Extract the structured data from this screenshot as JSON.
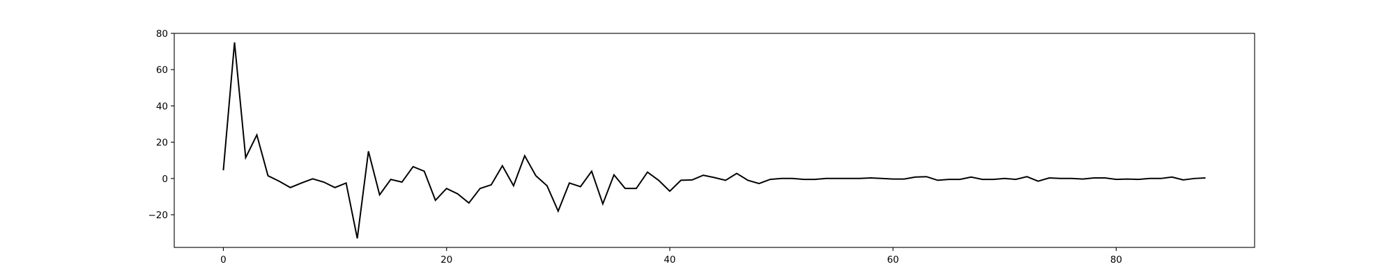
{
  "chart_data": {
    "type": "line",
    "title": "",
    "xlabel": "",
    "ylabel": "",
    "xlim": [
      -4.4,
      92.4
    ],
    "ylim": [
      -38,
      80
    ],
    "xticks": [
      0,
      20,
      40,
      60,
      80
    ],
    "yticks": [
      -20,
      0,
      20,
      40,
      60,
      80
    ],
    "grid": false,
    "legend": "none",
    "series": [
      {
        "color": "#000000",
        "x": [
          0,
          1,
          2,
          3,
          4,
          5,
          6,
          7,
          8,
          9,
          10,
          11,
          12,
          13,
          14,
          15,
          16,
          17,
          18,
          19,
          20,
          21,
          22,
          23,
          24,
          25,
          26,
          27,
          28,
          29,
          30,
          31,
          32,
          33,
          34,
          35,
          36,
          37,
          38,
          39,
          40,
          41,
          42,
          43,
          44,
          45,
          46,
          47,
          48,
          49,
          50,
          51,
          52,
          53,
          54,
          55,
          56,
          57,
          58,
          59,
          60,
          61,
          62,
          63,
          64,
          65,
          66,
          67,
          68,
          69,
          70,
          71,
          72,
          73,
          74,
          75,
          76,
          77,
          78,
          79,
          80,
          81,
          82,
          83,
          84,
          85,
          86,
          87,
          88
        ],
        "y": [
          4.5,
          75,
          11.5,
          24,
          1.5,
          -1.5,
          -5,
          -2.5,
          -0.2,
          -2,
          -5,
          -2.5,
          -33,
          15,
          -9,
          -0.5,
          -2,
          6.5,
          4,
          -12,
          -5.5,
          -8.5,
          -13.5,
          -5.5,
          -3.5,
          7,
          -4,
          12.5,
          1.5,
          -4,
          -18,
          -2.5,
          -4.5,
          4,
          -14,
          2,
          -5.5,
          -5.5,
          3.5,
          -1,
          -7,
          -1,
          -0.8,
          1.8,
          0.5,
          -1,
          2.8,
          -1,
          -2.8,
          -0.5,
          0,
          0,
          -0.5,
          -0.5,
          0,
          0,
          0,
          0,
          0.3,
          0,
          -0.3,
          -0.3,
          0.8,
          1,
          -1,
          -0.5,
          -0.5,
          0.8,
          -0.5,
          -0.5,
          0,
          -0.5,
          1,
          -1.5,
          0.3,
          0,
          0,
          -0.3,
          0.3,
          0.3,
          -0.5,
          -0.3,
          -0.5,
          0,
          0,
          0.8,
          -0.8,
          0,
          0.3
        ]
      }
    ]
  }
}
